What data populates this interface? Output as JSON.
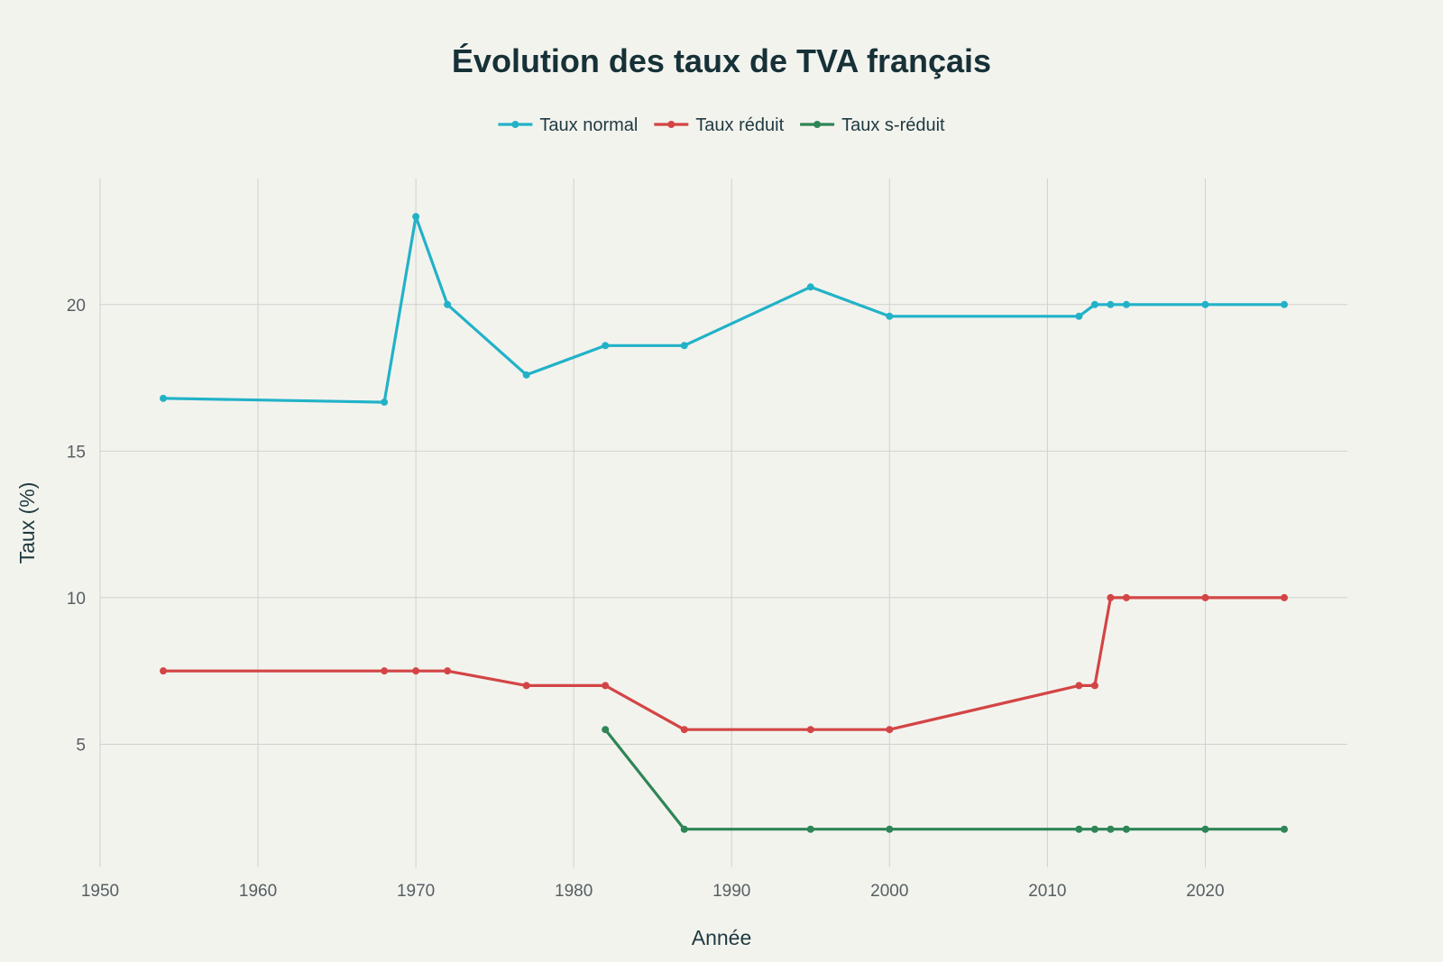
{
  "chart_data": {
    "type": "line",
    "title": "Évolution des taux de TVA français",
    "xlabel": "Année",
    "ylabel": "Taux (%)",
    "xlim": [
      1950,
      2029
    ],
    "ylim": [
      0.8,
      24.3
    ],
    "x_ticks": [
      1950,
      1960,
      1970,
      1980,
      1990,
      2000,
      2010,
      2020
    ],
    "y_ticks": [
      5,
      10,
      15,
      20
    ],
    "grid": true,
    "legend_position": "top-center",
    "series": [
      {
        "name": "Taux normal",
        "color": "#22b2c8",
        "x": [
          1954,
          1968,
          1970,
          1972,
          1977,
          1982,
          1987,
          1995,
          2000,
          2012,
          2013,
          2014,
          2015,
          2020,
          2025
        ],
        "y": [
          16.8,
          16.67,
          23,
          20,
          17.6,
          18.6,
          18.6,
          20.6,
          19.6,
          19.6,
          20,
          20,
          20,
          20,
          20
        ]
      },
      {
        "name": "Taux réduit",
        "color": "#d34545",
        "x": [
          1954,
          1968,
          1970,
          1972,
          1977,
          1982,
          1987,
          1995,
          2000,
          2012,
          2013,
          2014,
          2015,
          2020,
          2025
        ],
        "y": [
          7.5,
          7.5,
          7.5,
          7.5,
          7,
          7,
          5.5,
          5.5,
          5.5,
          7,
          7,
          10,
          10,
          10,
          10
        ]
      },
      {
        "name": "Taux s-réduit",
        "color": "#2e8556",
        "x": [
          1982,
          1987,
          1995,
          2000,
          2012,
          2013,
          2014,
          2015,
          2020,
          2025
        ],
        "y": [
          5.5,
          2.1,
          2.1,
          2.1,
          2.1,
          2.1,
          2.1,
          2.1,
          2.1,
          2.1
        ]
      }
    ]
  }
}
